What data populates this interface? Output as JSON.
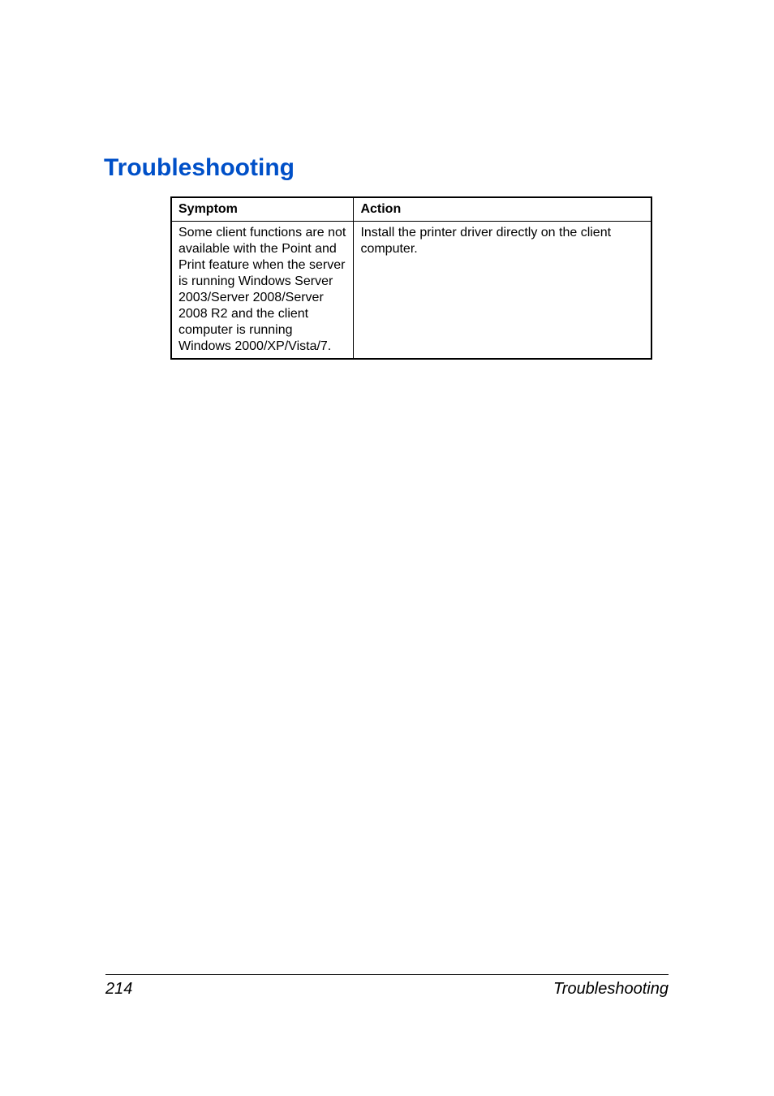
{
  "heading": "Troubleshooting",
  "table": {
    "headers": [
      "Symptom",
      "Action"
    ],
    "row": {
      "symptom": "Some client functions are not available with the Point and Print feature when the server is running Windows Server 2003/Server 2008/Server 2008 R2 and the client computer is running Windows 2000/XP/Vista/7.",
      "action": "Install the printer driver directly on the client computer."
    }
  },
  "footer": {
    "page_number": "214",
    "section": "Troubleshooting"
  }
}
